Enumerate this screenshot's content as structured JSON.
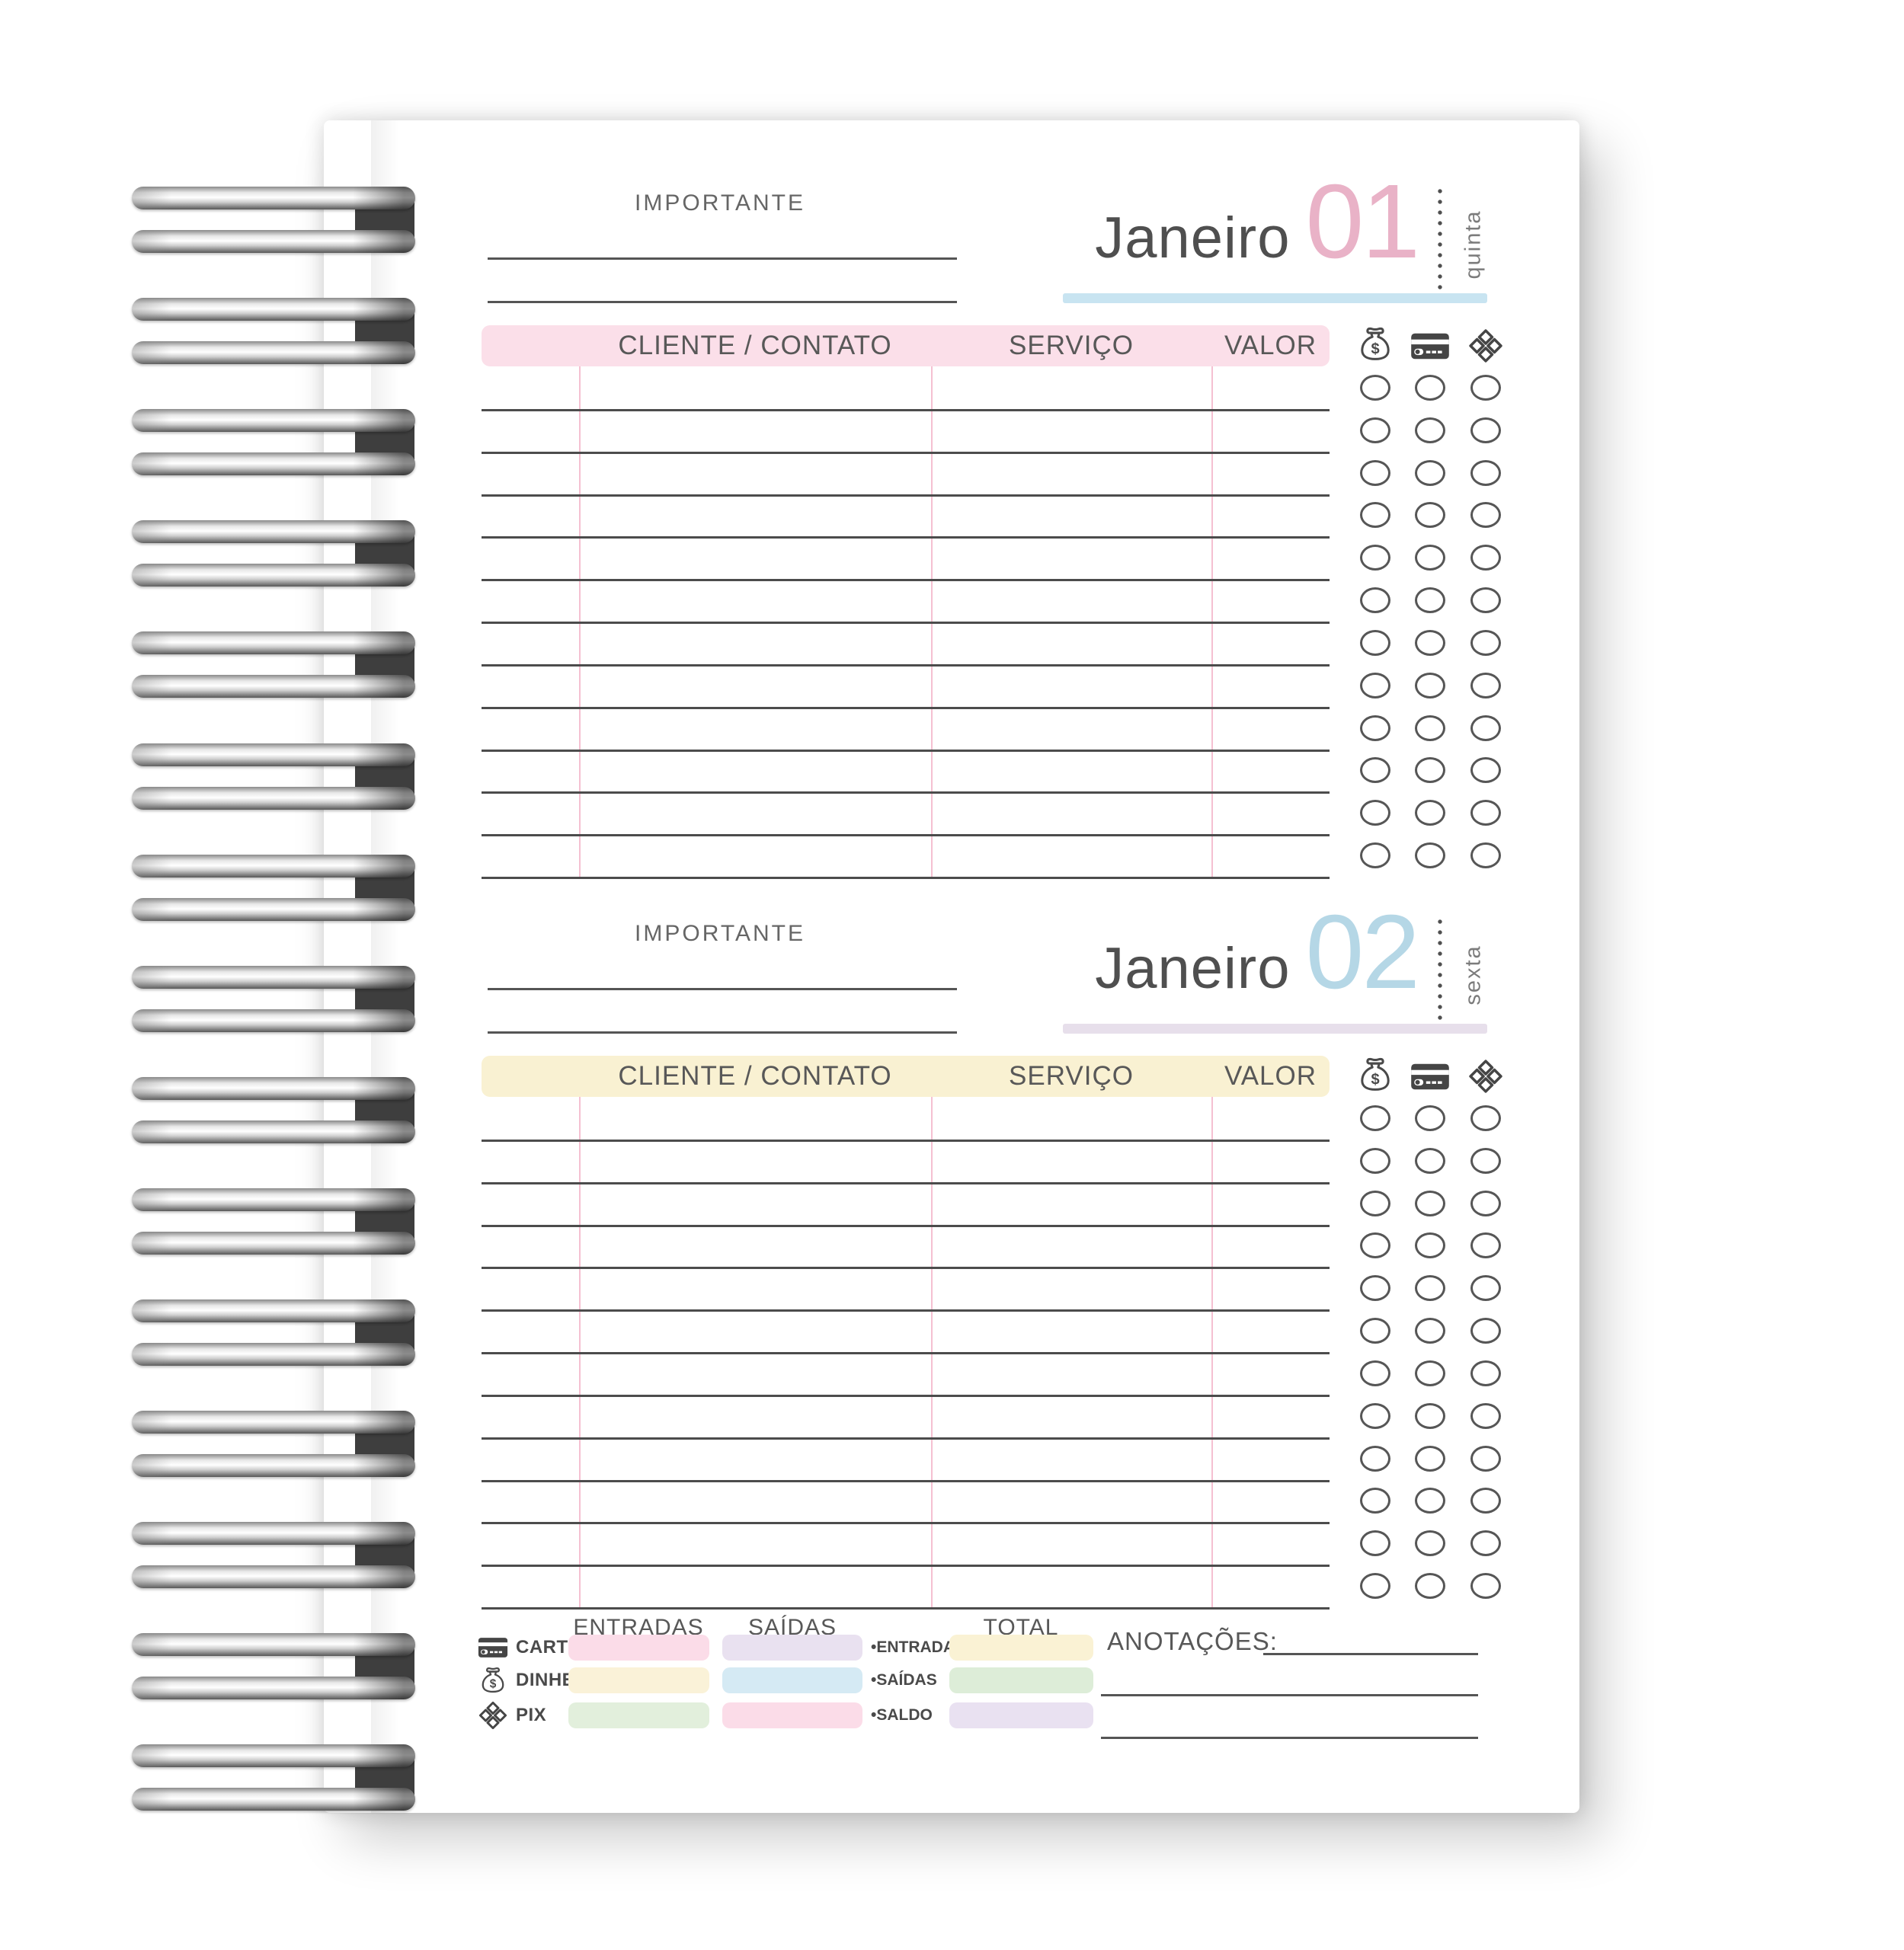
{
  "page": {
    "important_label": "IMPORTANTE",
    "days": [
      {
        "month": "Janeiro",
        "day_number": "01",
        "weekday": "quinta",
        "rows": 12,
        "columns": [
          "CLIENTE / CONTATO",
          "SERVIÇO",
          "VALOR"
        ],
        "payment_methods": [
          "dinheiro",
          "cartão",
          "pix"
        ],
        "day_color": "#e9b2c7",
        "bar_color": "#c8e4f1",
        "header_bg": "#fbdfe9"
      },
      {
        "month": "Janeiro",
        "day_number": "02",
        "weekday": "sexta",
        "rows": 12,
        "columns": [
          "CLIENTE / CONTATO",
          "SERVIÇO",
          "VALOR"
        ],
        "payment_methods": [
          "dinheiro",
          "cartão",
          "pix"
        ],
        "day_color": "#b5d7e6",
        "bar_color": "#e7dfeb",
        "header_bg": "#f9f1d2"
      }
    ],
    "summary": {
      "column_headers": [
        "ENTRADAS",
        "SAÍDAS",
        "TOTAL"
      ],
      "method_rows": [
        {
          "label": "CARTÃO",
          "icon": "card",
          "entradas_color": "#fbdce8",
          "saidas_color": "#e9e1f0"
        },
        {
          "label": "DINHEIRO",
          "icon": "money-bag",
          "entradas_color": "#faf2d8",
          "saidas_color": "#d5eaf4"
        },
        {
          "label": "PIX",
          "icon": "pix",
          "entradas_color": "#e2efdc",
          "saidas_color": "#fbdce8"
        }
      ],
      "total_rows": [
        {
          "label": "•ENTRADAS",
          "color": "#faf2d4"
        },
        {
          "label": "•SAÍDAS",
          "color": "#ddedd8"
        },
        {
          "label": "•SALDO",
          "color": "#e9e1f1"
        }
      ],
      "anotacoes_label": "ANOTAÇÕES:"
    }
  }
}
